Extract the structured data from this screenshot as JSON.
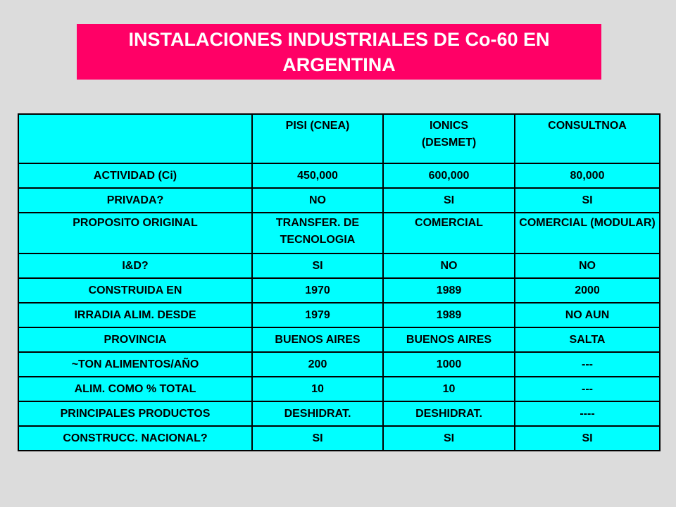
{
  "title": {
    "line1": "INSTALACIONES INDUSTRIALES DE Co-60 EN",
    "line2": "ARGENTINA"
  },
  "table": {
    "headers": [
      "",
      "PISI (CNEA)",
      "IONICS\n(DESMET)",
      "CONSULTNOA"
    ],
    "header_ionics_line1": "IONICS",
    "header_ionics_line2": "(DESMET)",
    "rows": [
      [
        "ACTIVIDAD (Ci)",
        "450,000",
        "600,000",
        "80,000"
      ],
      [
        "PRIVADA?",
        "NO",
        "SI",
        "SI"
      ],
      [
        "PROPOSITO ORIGINAL",
        "TRANSFER. DE TECNOLOGIA",
        "COMERCIAL",
        "COMERCIAL (MODULAR)"
      ],
      [
        "I&D?",
        "SI",
        "NO",
        "NO"
      ],
      [
        "CONSTRUIDA EN",
        "1970",
        "1989",
        "2000"
      ],
      [
        "IRRADIA ALIM. DESDE",
        "1979",
        "1989",
        "NO AUN"
      ],
      [
        "PROVINCIA",
        "BUENOS AIRES",
        "BUENOS AIRES",
        "SALTA"
      ],
      [
        "~TON ALIMENTOS/AÑO",
        "200",
        "1000",
        "---"
      ],
      [
        "ALIM. COMO % TOTAL",
        "10",
        "10",
        "---"
      ],
      [
        "PRINCIPALES PRODUCTOS",
        "DESHIDRAT.",
        "DESHIDRAT.",
        "----"
      ],
      [
        "CONSTRUCC. NACIONAL?",
        "SI",
        "SI",
        "SI"
      ]
    ]
  },
  "colors": {
    "title_bg": "#ff0066",
    "table_bg": "#00ffff",
    "page_bg": "#dcdcdc"
  }
}
